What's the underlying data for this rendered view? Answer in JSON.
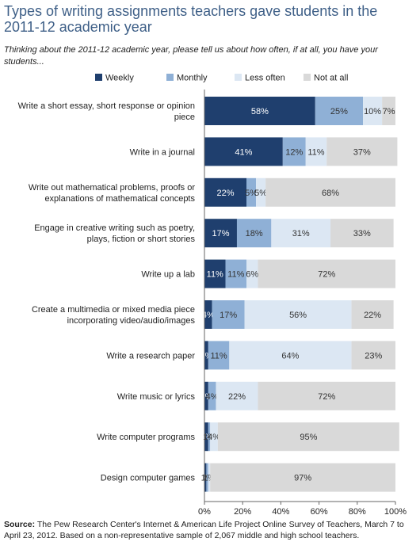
{
  "title": "Types of writing assignments teachers gave students in the 2011-12 academic year",
  "subtitle": "Thinking about the 2011-12 academic year, please tell us about how often, if at all, you have your students...",
  "source_label": "Source:",
  "source_text": "The Pew Research Center's Internet & American Life Project Online Survey of Teachers, March 7 to April 23, 2012.  Based on a non-representative sample of 2,067 middle and high school teachers.",
  "colors": {
    "Weekly": "#1f3f6e",
    "Monthly": "#8fb0d6",
    "Less often": "#dce7f3",
    "Not at all": "#d9d9d9"
  },
  "chart_data": {
    "type": "bar",
    "orientation": "horizontal",
    "stacked": true,
    "categories": [
      [
        "Write a short essay, short response or opinion",
        "piece"
      ],
      [
        "Write in a journal"
      ],
      [
        "Write out mathematical problems, proofs or",
        "explanations of mathematical concepts"
      ],
      [
        "Engage in creative writing such as poetry,",
        "plays, fiction or short stories"
      ],
      [
        "Write up a lab"
      ],
      [
        "Create a multimedia or mixed media piece",
        "incorporating video/audio/images"
      ],
      [
        "Write a research paper"
      ],
      [
        "Write music or lyrics"
      ],
      [
        "Write computer programs"
      ],
      [
        "Design computer games"
      ]
    ],
    "series": [
      {
        "name": "Weekly",
        "values": [
          58,
          41,
          22,
          17,
          11,
          4,
          2,
          2,
          2,
          1
        ]
      },
      {
        "name": "Monthly",
        "values": [
          25,
          12,
          5,
          18,
          11,
          17,
          11,
          4,
          1,
          1
        ]
      },
      {
        "name": "Less often",
        "values": [
          10,
          11,
          5,
          31,
          6,
          56,
          64,
          22,
          4,
          1
        ]
      },
      {
        "name": "Not at all",
        "values": [
          7,
          37,
          68,
          33,
          72,
          22,
          23,
          72,
          95,
          97
        ]
      }
    ],
    "data_labels": [
      [
        "58%",
        "25%",
        "10%",
        "7%"
      ],
      [
        "41%",
        "12%",
        "11%",
        "37%"
      ],
      [
        "22%",
        "5%",
        "5%",
        "68%"
      ],
      [
        "17%",
        "18%",
        "31%",
        "33%"
      ],
      [
        "11%",
        "11%",
        "6%",
        "72%"
      ],
      [
        "4%",
        "17%",
        "56%",
        "22%"
      ],
      [
        "2%",
        "11%",
        "64%",
        "23%"
      ],
      [
        "2%",
        "4%",
        "22%",
        "72%"
      ],
      [
        "2%",
        "1%",
        "4%",
        "95%"
      ],
      [
        "1%",
        "1%",
        "1%",
        "97%"
      ]
    ],
    "x_ticks": [
      "0%",
      "20%",
      "40%",
      "60%",
      "80%",
      "100%"
    ],
    "xlim": [
      0,
      100
    ],
    "legend_position": "top",
    "grid": false
  }
}
